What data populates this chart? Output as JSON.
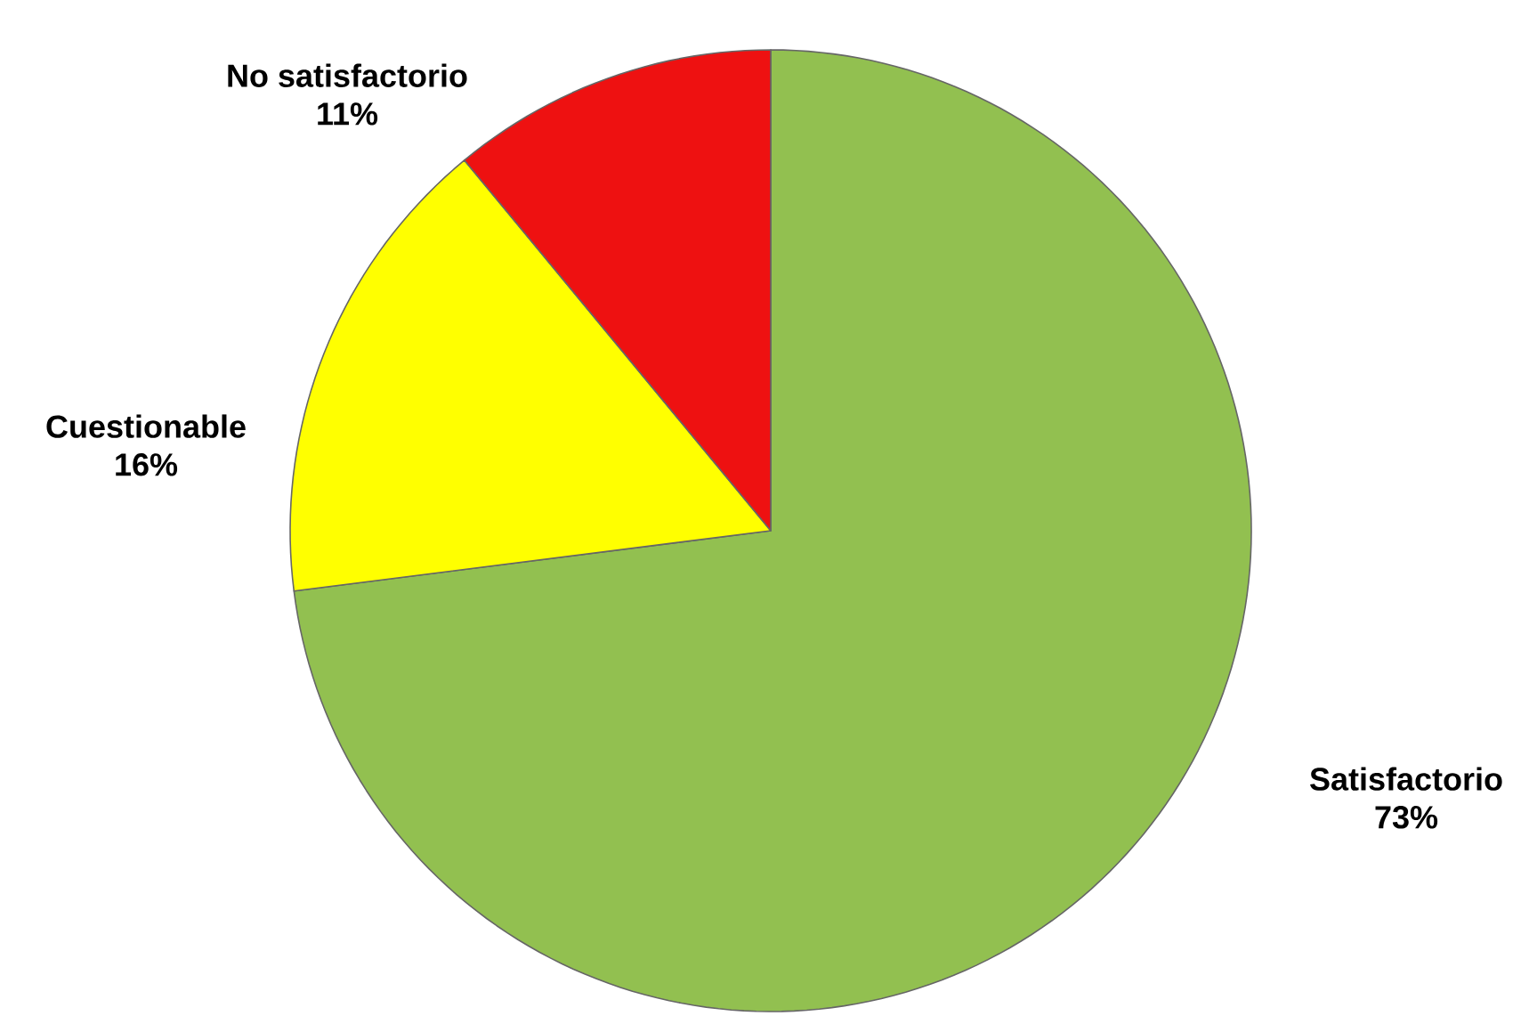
{
  "chart_data": {
    "type": "pie",
    "categories": [
      "Satisfactorio",
      "Cuestionable",
      "No satisfactorio"
    ],
    "values": [
      73,
      16,
      11
    ],
    "colors": [
      "#92c050",
      "#ffff00",
      "#ee1111"
    ],
    "value_labels": [
      "73%",
      "16%",
      "11%"
    ]
  }
}
